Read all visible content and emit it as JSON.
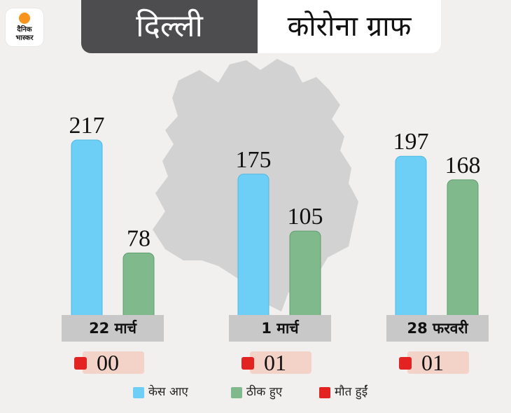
{
  "logo": {
    "line1": "दैनिक",
    "line2": "भास्कर"
  },
  "header": {
    "city": "दिल्ली",
    "title": "कोरोना ग्राफ"
  },
  "colors": {
    "cases": "#6dcff6",
    "recovered": "#7fb98c",
    "deaths": "#e32222"
  },
  "chart_data": {
    "type": "bar",
    "categories": [
      "22 मार्च",
      "1 मार्च",
      "28 फरवरी"
    ],
    "series": [
      {
        "name": "केस आए",
        "values": [
          217,
          175,
          197
        ]
      },
      {
        "name": "ठीक हुए",
        "values": [
          78,
          105,
          168
        ]
      }
    ],
    "deaths": [
      "00",
      "01",
      "01"
    ],
    "ylim": [
      0,
      217
    ],
    "legend": [
      {
        "label": "केस आए",
        "color": "#6dcff6"
      },
      {
        "label": "ठीक हुए",
        "color": "#7fb98c"
      },
      {
        "label": "मौत हुईं",
        "color": "#e32222"
      }
    ]
  }
}
